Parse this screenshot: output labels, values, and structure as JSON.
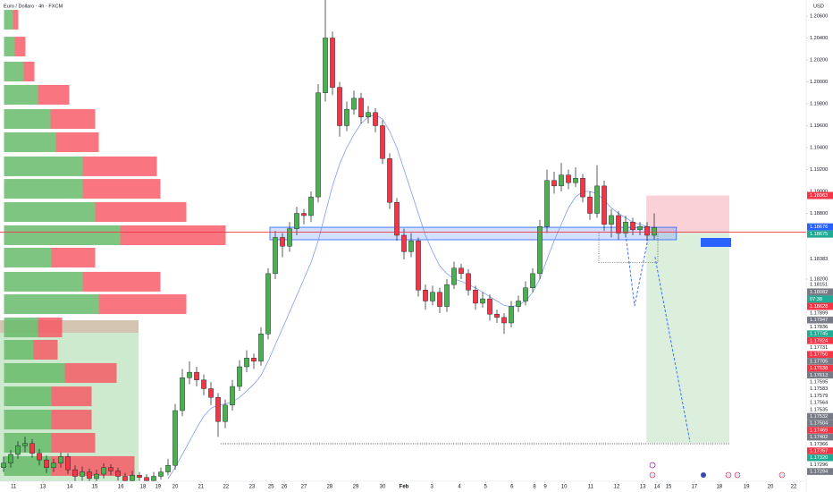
{
  "header": {
    "symbol": "Euro / Dollaro · 4h · FXCM",
    "currency": "USD"
  },
  "chart_data": {
    "type": "candlestick",
    "up_color": "#4caf50",
    "down_color": "#f23645",
    "grid": false,
    "xlim": [
      -0.5,
      112.25
    ],
    "xticks": [
      {
        "value": 1.4,
        "label": "11"
      },
      {
        "value": 5.5,
        "label": "13"
      },
      {
        "value": 9.25,
        "label": "14"
      },
      {
        "value": 12.75,
        "label": "15"
      },
      {
        "value": 16.4,
        "label": "16"
      },
      {
        "value": 19.5,
        "label": "18"
      },
      {
        "value": 21.6,
        "label": "19"
      },
      {
        "value": 24,
        "label": "20"
      },
      {
        "value": 27.6,
        "label": "21"
      },
      {
        "value": 31.1,
        "label": "22"
      },
      {
        "value": 34.75,
        "label": "23"
      },
      {
        "value": 37.4,
        "label": "25"
      },
      {
        "value": 39.25,
        "label": "26"
      },
      {
        "value": 42,
        "label": "27"
      },
      {
        "value": 45.6,
        "label": "28"
      },
      {
        "value": 49.25,
        "label": "29"
      },
      {
        "value": 53,
        "label": "30"
      },
      {
        "value": 56,
        "label": "Feb"
      },
      {
        "value": 59.9,
        "label": "3"
      },
      {
        "value": 63.75,
        "label": "4"
      },
      {
        "value": 67.4,
        "label": "5"
      },
      {
        "value": 71.1,
        "label": "6"
      },
      {
        "value": 74.25,
        "label": "8"
      },
      {
        "value": 75.75,
        "label": "9"
      },
      {
        "value": 78.4,
        "label": "10"
      },
      {
        "value": 82.1,
        "label": "11"
      },
      {
        "value": 85.75,
        "label": "12"
      },
      {
        "value": 89.4,
        "label": "13"
      },
      {
        "value": 91.4,
        "label": "14"
      },
      {
        "value": 93,
        "label": "15"
      },
      {
        "value": 96.6,
        "label": "17"
      },
      {
        "value": 100.1,
        "label": "18"
      },
      {
        "value": 103.9,
        "label": "19"
      },
      {
        "value": 107.25,
        "label": "20"
      },
      {
        "value": 110.5,
        "label": "22"
      }
    ],
    "ylim": [
      1.16257,
      1.20747
    ],
    "yticks": [
      {
        "value": 1.206,
        "label": "1.20600"
      },
      {
        "value": 1.204,
        "label": "1.20400"
      },
      {
        "value": 1.202,
        "label": "1.20200"
      },
      {
        "value": 1.2,
        "label": "1.20000"
      },
      {
        "value": 1.198,
        "label": "1.19800"
      },
      {
        "value": 1.196,
        "label": "1.19600"
      },
      {
        "value": 1.194,
        "label": "1.19400"
      },
      {
        "value": 1.192,
        "label": "1.19200"
      },
      {
        "value": 1.19,
        "label": "1.19000"
      },
      {
        "value": 1.188,
        "label": "1.18800"
      },
      {
        "value": 1.182,
        "label": "1.18200"
      },
      {
        "value": 1.18,
        "label": "1.18000"
      }
    ],
    "candles": [
      [
        1.1648,
        1.1658,
        1.1644,
        1.1652
      ],
      [
        1.1652,
        1.1664,
        1.1648,
        1.166
      ],
      [
        1.166,
        1.1672,
        1.1656,
        1.1668
      ],
      [
        1.1668,
        1.1676,
        1.1662,
        1.167
      ],
      [
        1.167,
        1.1674,
        1.1657,
        1.1661
      ],
      [
        1.1661,
        1.1665,
        1.165,
        1.1655
      ],
      [
        1.1655,
        1.1659,
        1.1643,
        1.1648
      ],
      [
        1.1648,
        1.1656,
        1.1644,
        1.1652
      ],
      [
        1.1652,
        1.1662,
        1.1648,
        1.1658
      ],
      [
        1.1658,
        1.1661,
        1.1642,
        1.1646
      ],
      [
        1.1646,
        1.165,
        1.1635,
        1.164
      ],
      [
        1.164,
        1.1649,
        1.1636,
        1.1644
      ],
      [
        1.1644,
        1.1647,
        1.1633,
        1.1638
      ],
      [
        1.1638,
        1.1646,
        1.1634,
        1.1642
      ],
      [
        1.1642,
        1.1652,
        1.1638,
        1.1648
      ],
      [
        1.1648,
        1.1651,
        1.1641,
        1.1645
      ],
      [
        1.1645,
        1.1648,
        1.1636,
        1.164
      ],
      [
        1.164,
        1.1643,
        1.1632,
        1.1636
      ],
      [
        1.1636,
        1.1645,
        1.1633,
        1.1641
      ],
      [
        1.1641,
        1.1644,
        1.1635,
        1.1639
      ],
      [
        1.1639,
        1.1642,
        1.1632,
        1.1636
      ],
      [
        1.1636,
        1.1644,
        1.1633,
        1.164
      ],
      [
        1.164,
        1.1648,
        1.1637,
        1.1644
      ],
      [
        1.1644,
        1.1656,
        1.1641,
        1.165
      ],
      [
        1.165,
        1.1706,
        1.1646,
        1.17
      ],
      [
        1.17,
        1.1738,
        1.1695,
        1.173
      ],
      [
        1.173,
        1.1745,
        1.1724,
        1.1735
      ],
      [
        1.1735,
        1.174,
        1.1722,
        1.1728
      ],
      [
        1.1728,
        1.1733,
        1.1714,
        1.172
      ],
      [
        1.172,
        1.1726,
        1.1705,
        1.1712
      ],
      [
        1.1712,
        1.1716,
        1.1676,
        1.169
      ],
      [
        1.169,
        1.171,
        1.1684,
        1.1705
      ],
      [
        1.1705,
        1.1728,
        1.17,
        1.1722
      ],
      [
        1.1722,
        1.1746,
        1.1718,
        1.174
      ],
      [
        1.174,
        1.1755,
        1.1735,
        1.1748
      ],
      [
        1.1748,
        1.1752,
        1.1738,
        1.1745
      ],
      [
        1.1745,
        1.1776,
        1.1741,
        1.177
      ],
      [
        1.177,
        1.183,
        1.1765,
        1.1825
      ],
      [
        1.1825,
        1.1864,
        1.182,
        1.1858
      ],
      [
        1.1858,
        1.1862,
        1.184,
        1.185
      ],
      [
        1.185,
        1.1872,
        1.1845,
        1.1866
      ],
      [
        1.1866,
        1.1886,
        1.186,
        1.188
      ],
      [
        1.188,
        1.1884,
        1.187,
        1.1878
      ],
      [
        1.1878,
        1.19,
        1.1872,
        1.1895
      ],
      [
        1.1895,
        1.1998,
        1.189,
        1.199
      ],
      [
        1.199,
        1.2075,
        1.1982,
        1.204
      ],
      [
        1.204,
        1.2046,
        1.1988,
        1.1995
      ],
      [
        1.1995,
        1.2,
        1.195,
        1.196
      ],
      [
        1.196,
        1.1982,
        1.1955,
        1.1975
      ],
      [
        1.1975,
        1.1992,
        1.197,
        1.1985
      ],
      [
        1.1985,
        1.199,
        1.1962,
        1.1968
      ],
      [
        1.1968,
        1.1978,
        1.1962,
        1.1972
      ],
      [
        1.1972,
        1.1976,
        1.1954,
        1.196
      ],
      [
        1.196,
        1.1965,
        1.1925,
        1.193
      ],
      [
        1.193,
        1.1935,
        1.1884,
        1.189
      ],
      [
        1.189,
        1.1894,
        1.1855,
        1.186
      ],
      [
        1.186,
        1.1866,
        1.1838,
        1.1845
      ],
      [
        1.1845,
        1.1862,
        1.184,
        1.1855
      ],
      [
        1.1855,
        1.1858,
        1.1804,
        1.181
      ],
      [
        1.181,
        1.1815,
        1.1792,
        1.18
      ],
      [
        1.18,
        1.1814,
        1.1796,
        1.1808
      ],
      [
        1.1808,
        1.1812,
        1.1789,
        1.1795
      ],
      [
        1.1795,
        1.182,
        1.179,
        1.1815
      ],
      [
        1.1815,
        1.1836,
        1.1811,
        1.183
      ],
      [
        1.183,
        1.1834,
        1.182,
        1.1825
      ],
      [
        1.1825,
        1.1829,
        1.1805,
        1.181
      ],
      [
        1.181,
        1.1814,
        1.1792,
        1.1798
      ],
      [
        1.1798,
        1.1808,
        1.1794,
        1.1802
      ],
      [
        1.1802,
        1.1806,
        1.1782,
        1.1788
      ],
      [
        1.1788,
        1.1792,
        1.178,
        1.1785
      ],
      [
        1.1785,
        1.1789,
        1.177,
        1.178
      ],
      [
        1.178,
        1.18,
        1.1776,
        1.1795
      ],
      [
        1.1795,
        1.1805,
        1.179,
        1.18
      ],
      [
        1.18,
        1.1818,
        1.1796,
        1.1812
      ],
      [
        1.1812,
        1.183,
        1.1808,
        1.1825
      ],
      [
        1.1825,
        1.1874,
        1.182,
        1.1868
      ],
      [
        1.1868,
        1.192,
        1.1862,
        1.191
      ],
      [
        1.191,
        1.1918,
        1.1898,
        1.1905
      ],
      [
        1.1905,
        1.1926,
        1.19,
        1.1915
      ],
      [
        1.1915,
        1.192,
        1.1902,
        1.1908
      ],
      [
        1.1908,
        1.1922,
        1.1904,
        1.1912
      ],
      [
        1.1912,
        1.1916,
        1.189,
        1.1895
      ],
      [
        1.1895,
        1.19,
        1.1874,
        1.188
      ],
      [
        1.188,
        1.1924,
        1.1876,
        1.1905
      ],
      [
        1.1905,
        1.191,
        1.1864,
        1.187
      ],
      [
        1.187,
        1.1884,
        1.1858,
        1.1878
      ],
      [
        1.1878,
        1.1882,
        1.1856,
        1.1862
      ],
      [
        1.1862,
        1.1878,
        1.1858,
        1.1872
      ],
      [
        1.1872,
        1.1876,
        1.186,
        1.1865
      ],
      [
        1.1865,
        1.1872,
        1.186,
        1.1868
      ],
      [
        1.1868,
        1.1872,
        1.1855,
        1.186
      ],
      [
        1.186,
        1.188,
        1.1856,
        1.1867
      ]
    ],
    "ma": {
      "color": "#7e9cf0",
      "values": [
        null,
        null,
        null,
        null,
        null,
        null,
        null,
        null,
        null,
        null,
        null,
        null,
        null,
        null,
        null,
        null,
        null,
        null,
        null,
        null,
        null,
        null,
        null,
        1.1638,
        1.1648,
        1.166,
        1.1672,
        1.1684,
        1.1695,
        1.1702,
        1.1705,
        1.1706,
        1.1708,
        1.1712,
        1.1718,
        1.1724,
        1.1732,
        1.1745,
        1.176,
        1.1775,
        1.179,
        1.1805,
        1.182,
        1.1835,
        1.1855,
        1.188,
        1.1905,
        1.1925,
        1.194,
        1.1952,
        1.1962,
        1.1968,
        1.197,
        1.1966,
        1.1955,
        1.194,
        1.192,
        1.19,
        1.188,
        1.186,
        1.1845,
        1.1832,
        1.1825,
        1.182,
        1.1818,
        1.1815,
        1.1812,
        1.1808,
        1.1804,
        1.18,
        1.1796,
        1.1795,
        1.1796,
        1.18,
        1.1808,
        1.182,
        1.1838,
        1.1855,
        1.187,
        1.1885,
        1.1895,
        1.19,
        1.19,
        1.1898,
        1.1892,
        1.1885,
        1.188,
        1.1876,
        1.1872,
        1.187,
        1.1868,
        1.1866
      ]
    },
    "volume_profile": {
      "up_color": "#66bb6a",
      "down_color": "#f7525f",
      "xlim": [
        0,
        900
      ],
      "row_height": 0.00196,
      "rows": [
        {
          "price": 1.20567,
          "up": 10,
          "down": 6
        },
        {
          "price": 1.20322,
          "up": 12,
          "down": 12
        },
        {
          "price": 1.20094,
          "up": 22,
          "down": 12
        },
        {
          "price": 1.19882,
          "up": 38,
          "down": 35
        },
        {
          "price": 1.19661,
          "up": 52,
          "down": 50
        },
        {
          "price": 1.19449,
          "up": 58,
          "down": 48
        },
        {
          "price": 1.19229,
          "up": 88,
          "down": 83
        },
        {
          "price": 1.19024,
          "up": 88,
          "down": 87
        },
        {
          "price": 1.18812,
          "up": 102,
          "down": 102
        },
        {
          "price": 1.186,
          "up": 130,
          "down": 118
        },
        {
          "price": 1.18396,
          "up": 53,
          "down": 49
        },
        {
          "price": 1.18176,
          "up": 88,
          "down": 87
        },
        {
          "price": 1.17971,
          "up": 106,
          "down": 98
        },
        {
          "price": 1.17759,
          "up": 38,
          "down": 27
        },
        {
          "price": 1.17555,
          "up": 33,
          "down": 27
        },
        {
          "price": 1.17343,
          "up": 68,
          "down": 58
        },
        {
          "price": 1.1713,
          "up": 53,
          "down": 45
        },
        {
          "price": 1.16918,
          "up": 53,
          "down": 45
        },
        {
          "price": 1.16706,
          "up": 53,
          "down": 49
        },
        {
          "price": 1.16494,
          "up": 53,
          "down": 93
        }
      ]
    },
    "zone": {
      "color": "#2962ff",
      "low": 1.18559,
      "high": 1.18673,
      "from": 37.25,
      "to": 94.1
    },
    "position": {
      "entry": 1.18628,
      "stop": 1.18963,
      "target": 1.16706,
      "from": 89.9,
      "to": 101.5,
      "stop_color": "#f9c5cd",
      "target_color": "#d3ebd4"
    },
    "dotted_line": {
      "value": 1.16698,
      "from": 30.4,
      "to": 101.5
    },
    "dotted_box": {
      "high": 1.18628,
      "low": 1.18352,
      "from": 83.25,
      "to": 91.5
    },
    "projection": {
      "color": "#2962ff",
      "x": [
        87,
        88.25,
        90.1,
        null,
        91.1,
        96
      ],
      "y": [
        1.18608,
        1.17955,
        1.18559,
        null,
        1.18404,
        1.16714
      ]
    },
    "last_price": {
      "value": 1.18628,
      "color": "#f23645",
      "countdown": "07:38"
    },
    "price_badges": [
      {
        "value": 1.18963,
        "color": "#f23645",
        "style": "fill"
      },
      {
        "value": 1.18676,
        "color": "#2962ff",
        "style": "fill"
      },
      {
        "value": 1.18675,
        "color": "#22ab94",
        "style": "fill"
      },
      {
        "value": 1.18383,
        "color": "#131722",
        "style": "text"
      },
      {
        "value": 1.18151,
        "color": "#131722",
        "style": "text"
      },
      {
        "value": 1.18082,
        "color": "#787b86",
        "style": "fill"
      }
    ],
    "lower_labels": [
      "1.17899",
      "1.17947",
      "1.17836",
      "1.17745",
      "1.17824",
      "1.17731",
      "1.17750",
      "1.17705",
      "1.17638",
      "1.17613",
      "1.17595",
      "1.17583",
      "1.17579",
      "1.17564",
      "1.17535",
      "1.17532",
      "1.17504",
      "1.17469",
      "1.17402",
      "1.17366",
      "1.17357",
      "1.17320",
      "1.17296",
      "1.17294"
    ],
    "lower_label_colors": [
      null,
      "#787b86",
      null,
      "#22ab94",
      "#f23645",
      null,
      "#f23645",
      "#787b86",
      "#f23645",
      "#787b86",
      null,
      null,
      null,
      null,
      null,
      "#787b86",
      "#787b86",
      "#f23645",
      "#787b86",
      null,
      "#f23645",
      "#22ab94",
      null,
      "#787b86"
    ]
  }
}
